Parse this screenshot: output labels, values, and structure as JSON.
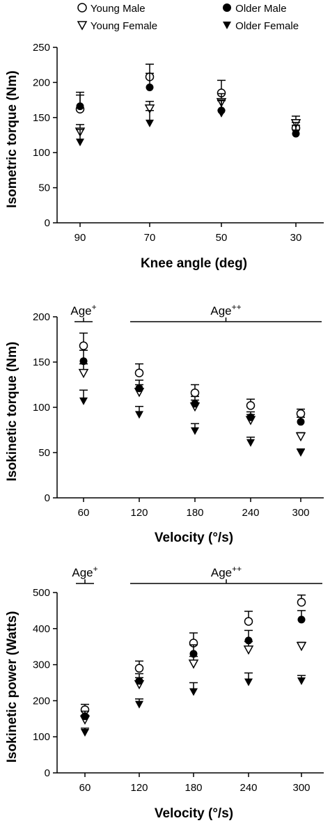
{
  "legend": [
    {
      "name": "Young Male",
      "marker": "open-circle"
    },
    {
      "name": "Young Female",
      "marker": "open-triangle-down"
    },
    {
      "name": "Older Male",
      "marker": "filled-circle"
    },
    {
      "name": "Older Female",
      "marker": "filled-triangle-down"
    }
  ],
  "chart_data": [
    {
      "type": "scatter",
      "title": "",
      "xlabel": "Knee angle (deg)",
      "ylabel": "Isometric torque (Nm)",
      "categories": [
        "90",
        "70",
        "50",
        "30"
      ],
      "ylim": [
        0,
        250
      ],
      "yticks": [
        0,
        50,
        100,
        150,
        200,
        250
      ],
      "grid": false,
      "series": [
        {
          "name": "Young Male",
          "values": [
            162,
            208,
            185,
            135
          ],
          "errors": [
            20,
            18,
            18,
            12
          ]
        },
        {
          "name": "Young Female",
          "values": [
            130,
            163,
            172,
            142
          ],
          "errors": [
            10,
            10,
            12,
            10
          ]
        },
        {
          "name": "Older Male",
          "values": [
            166,
            193,
            160,
            127
          ],
          "errors": [
            20,
            20,
            15,
            12
          ]
        },
        {
          "name": "Older Female",
          "values": [
            115,
            142,
            156,
            128
          ],
          "errors": [
            18,
            18,
            18,
            15
          ]
        }
      ],
      "annotations": []
    },
    {
      "type": "scatter",
      "title": "",
      "xlabel": "Velocity (°/s)",
      "ylabel": "Isokinetic torque (Nm)",
      "categories": [
        "60",
        "120",
        "180",
        "240",
        "300"
      ],
      "ylim": [
        0,
        200
      ],
      "yticks": [
        0,
        50,
        100,
        150,
        200
      ],
      "grid": false,
      "series": [
        {
          "name": "Young Male",
          "values": [
            168,
            138,
            116,
            102,
            93
          ],
          "errors": [
            14,
            10,
            9,
            7,
            5
          ]
        },
        {
          "name": "Young Female",
          "values": [
            138,
            117,
            101,
            86,
            68
          ],
          "errors": [
            10,
            8,
            7,
            6,
            4
          ]
        },
        {
          "name": "Older Male",
          "values": [
            151,
            121,
            104,
            89,
            84
          ],
          "errors": [
            12,
            9,
            8,
            6,
            5
          ]
        },
        {
          "name": "Older Female",
          "values": [
            107,
            92,
            74,
            61,
            50
          ],
          "errors": [
            12,
            9,
            8,
            6,
            4
          ]
        }
      ],
      "annotations": [
        {
          "text": "Age",
          "sup": "+",
          "from": "60",
          "to": "60"
        },
        {
          "text": "Age",
          "sup": "++",
          "from": "120",
          "to": "300"
        }
      ]
    },
    {
      "type": "scatter",
      "title": "",
      "xlabel": "Velocity (°/s)",
      "ylabel": "Isokinetic power (Watts)",
      "categories": [
        "60",
        "120",
        "180",
        "240",
        "300"
      ],
      "ylim": [
        0,
        500
      ],
      "yticks": [
        0,
        100,
        200,
        300,
        400,
        500
      ],
      "grid": false,
      "series": [
        {
          "name": "Young Male",
          "values": [
            175,
            290,
            360,
            420,
            473
          ],
          "errors": [
            15,
            20,
            28,
            28,
            20
          ]
        },
        {
          "name": "Young Female",
          "values": [
            148,
            246,
            303,
            342,
            352
          ],
          "errors": [
            12,
            18,
            20,
            22,
            10
          ]
        },
        {
          "name": "Older Male",
          "values": [
            157,
            255,
            330,
            367,
            425
          ],
          "errors": [
            14,
            20,
            25,
            28,
            25
          ]
        },
        {
          "name": "Older Female",
          "values": [
            112,
            190,
            225,
            252,
            255
          ],
          "errors": [
            12,
            15,
            25,
            25,
            15
          ]
        }
      ],
      "annotations": [
        {
          "text": "Age",
          "sup": "+",
          "from": "60",
          "to": "60"
        },
        {
          "text": "Age",
          "sup": "++",
          "from": "120",
          "to": "300"
        }
      ]
    }
  ]
}
